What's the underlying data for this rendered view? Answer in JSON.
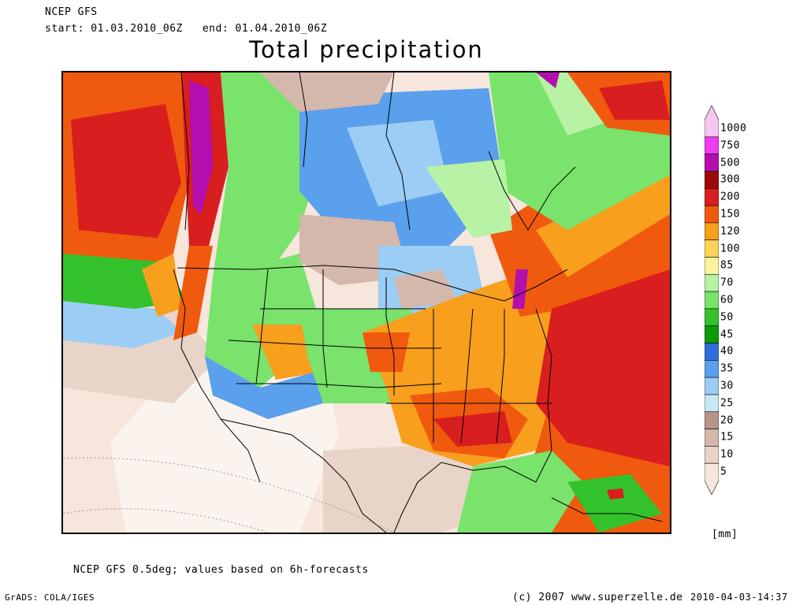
{
  "header": {
    "model": "NCEP GFS",
    "start_label": "start:",
    "start_value": "01.03.2010_06Z",
    "end_label": "end:",
    "end_value": "01.04.2010_06Z",
    "title": "Total precipitation"
  },
  "legend": {
    "unit": "[mm]",
    "levels": [
      {
        "label": "1000",
        "color": "#f7c6ef"
      },
      {
        "label": "750",
        "color": "#ee3cef"
      },
      {
        "label": "500",
        "color": "#b20fae"
      },
      {
        "label": "300",
        "color": "#9b0a0a"
      },
      {
        "label": "200",
        "color": "#d81e1e"
      },
      {
        "label": "150",
        "color": "#f05a0e"
      },
      {
        "label": "120",
        "color": "#f89f1e"
      },
      {
        "label": "100",
        "color": "#fcd25a"
      },
      {
        "label": "85",
        "color": "#fbf3a0"
      },
      {
        "label": "70",
        "color": "#b8f2a4"
      },
      {
        "label": "60",
        "color": "#79e36c"
      },
      {
        "label": "50",
        "color": "#33c22b"
      },
      {
        "label": "45",
        "color": "#0b9b0b"
      },
      {
        "label": "40",
        "color": "#2f6ed8"
      },
      {
        "label": "35",
        "color": "#5aa0ec"
      },
      {
        "label": "30",
        "color": "#9ccdf4"
      },
      {
        "label": "25",
        "color": "#c8e8f4"
      },
      {
        "label": "20",
        "color": "#b89488"
      },
      {
        "label": "15",
        "color": "#d4b8ac"
      },
      {
        "label": "10",
        "color": "#e8d4c8"
      },
      {
        "label": "5",
        "color": "#f6e6dc"
      }
    ]
  },
  "footer": {
    "note": "NCEP GFS 0.5deg; values based on 6h-forecasts",
    "grads": "GrADS: COLA/IGES",
    "copyright": "(c) 2007 www.superzelle.de",
    "timestamp": "2010-04-03-14:37"
  }
}
